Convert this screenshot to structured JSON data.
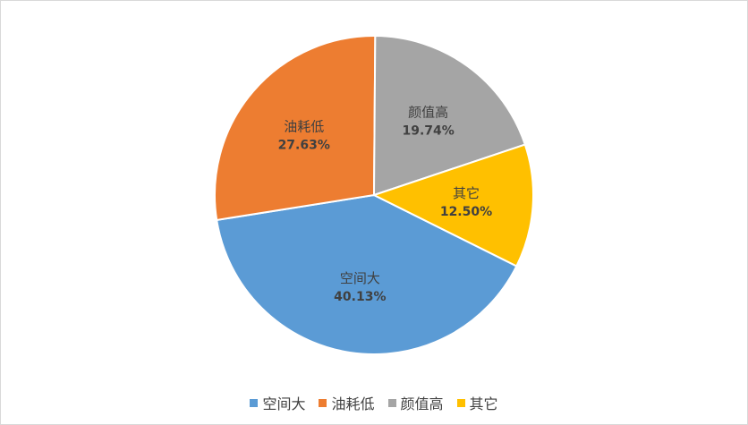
{
  "chart_data": {
    "type": "pie",
    "title": "",
    "slices": [
      {
        "label": "空间大",
        "value": 40.13,
        "value_label": "40.13%",
        "color": "#5b9bd5"
      },
      {
        "label": "油耗低",
        "value": 27.63,
        "value_label": "27.63%",
        "color": "#ed7d31"
      },
      {
        "label": "颜值高",
        "value": 19.74,
        "value_label": "19.74%",
        "color": "#a5a5a5"
      },
      {
        "label": "其它",
        "value": 12.5,
        "value_label": "12.50%",
        "color": "#ffc000"
      }
    ],
    "legend_placement": "bottom",
    "data_labels": "inside"
  },
  "legend": {
    "items": [
      {
        "label": "空间大",
        "color": "#5b9bd5"
      },
      {
        "label": "油耗低",
        "color": "#ed7d31"
      },
      {
        "label": "颜值高",
        "color": "#a5a5a5"
      },
      {
        "label": "其它",
        "color": "#ffc000"
      }
    ]
  }
}
